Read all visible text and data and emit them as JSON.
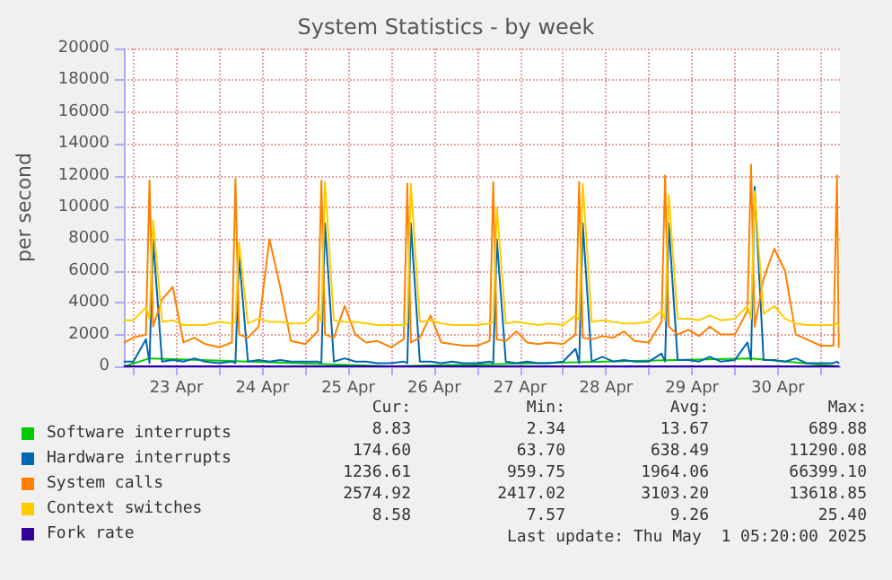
{
  "chart_data": {
    "type": "line",
    "title": "System Statistics - by week",
    "ylabel": "per second",
    "x": [
      "2025-04-22T21:30",
      "2025-04-23T00:00",
      "2025-04-23T03:30",
      "2025-04-23T04:30",
      "2025-04-23T05:30",
      "2025-04-23T08:00",
      "2025-04-23T11:00",
      "2025-04-23T14:00",
      "2025-04-23T17:00",
      "2025-04-23T20:00",
      "2025-04-24T00:00",
      "2025-04-24T03:30",
      "2025-04-24T04:30",
      "2025-04-24T05:30",
      "2025-04-24T08:00",
      "2025-04-24T11:00",
      "2025-04-24T14:00",
      "2025-04-24T17:00",
      "2025-04-24T20:00",
      "2025-04-25T00:00",
      "2025-04-25T03:30",
      "2025-04-25T04:30",
      "2025-04-25T05:30",
      "2025-04-25T08:00",
      "2025-04-25T11:00",
      "2025-04-25T14:00",
      "2025-04-25T17:00",
      "2025-04-25T20:00",
      "2025-04-26T00:00",
      "2025-04-26T03:30",
      "2025-04-26T04:30",
      "2025-04-26T05:30",
      "2025-04-26T08:00",
      "2025-04-26T11:00",
      "2025-04-26T14:00",
      "2025-04-26T17:00",
      "2025-04-26T20:00",
      "2025-04-27T00:00",
      "2025-04-27T03:30",
      "2025-04-27T04:30",
      "2025-04-27T05:30",
      "2025-04-27T08:00",
      "2025-04-27T11:00",
      "2025-04-27T14:00",
      "2025-04-27T17:00",
      "2025-04-27T20:00",
      "2025-04-28T00:00",
      "2025-04-28T03:30",
      "2025-04-28T04:30",
      "2025-04-28T05:30",
      "2025-04-28T08:00",
      "2025-04-28T11:00",
      "2025-04-28T14:00",
      "2025-04-28T17:00",
      "2025-04-28T20:00",
      "2025-04-29T00:00",
      "2025-04-29T03:30",
      "2025-04-29T04:30",
      "2025-04-29T05:30",
      "2025-04-29T08:00",
      "2025-04-29T11:00",
      "2025-04-29T14:00",
      "2025-04-29T17:00",
      "2025-04-29T20:00",
      "2025-04-30T00:00",
      "2025-04-30T03:30",
      "2025-04-30T04:30",
      "2025-04-30T05:30",
      "2025-04-30T08:00",
      "2025-04-30T11:00",
      "2025-04-30T14:00",
      "2025-04-30T17:00",
      "2025-04-30T20:00",
      "2025-05-01T00:00",
      "2025-05-01T03:30",
      "2025-05-01T04:30",
      "2025-05-01T05:00"
    ],
    "series": [
      {
        "name": "Software interrupts",
        "color": "#00cc00",
        "x": [
          "2025-04-22T21:30",
          "2025-04-23T04:30",
          "2025-04-26T00:00",
          "2025-04-30T04:30",
          "2025-05-01T05:00"
        ],
        "values": [
          0,
          500,
          0,
          500,
          0
        ]
      },
      {
        "name": "Hardware interrupts",
        "color": "#0066b3",
        "values": [
          300,
          300,
          1700,
          200,
          8000,
          300,
          400,
          300,
          500,
          300,
          200,
          300,
          200,
          7000,
          300,
          400,
          300,
          400,
          300,
          300,
          300,
          200,
          9000,
          300,
          500,
          300,
          300,
          200,
          200,
          300,
          200,
          9000,
          300,
          300,
          200,
          300,
          200,
          200,
          300,
          200,
          8000,
          300,
          200,
          300,
          200,
          200,
          300,
          1100,
          200,
          9000,
          300,
          600,
          300,
          400,
          300,
          300,
          800,
          300,
          9000,
          400,
          400,
          300,
          600,
          300,
          400,
          1500,
          400,
          11300,
          400,
          400,
          300,
          500,
          200,
          200,
          200,
          300,
          200
        ]
      },
      {
        "name": "System calls",
        "color": "#ff8000",
        "values": [
          1500,
          1800,
          2000,
          11700,
          2500,
          4200,
          5000,
          1500,
          1800,
          1400,
          1200,
          1500,
          11800,
          2000,
          1800,
          2500,
          8000,
          5000,
          1600,
          1400,
          2200,
          11700,
          2000,
          1800,
          3800,
          2000,
          1500,
          1600,
          1200,
          1700,
          11500,
          1500,
          1800,
          3200,
          1500,
          1400,
          1300,
          1300,
          1600,
          11600,
          1700,
          1600,
          2200,
          1500,
          1400,
          1500,
          1400,
          2000,
          11600,
          1800,
          1700,
          1900,
          1800,
          2200,
          1600,
          1500,
          2800,
          12000,
          2500,
          2000,
          2300,
          1900,
          2500,
          2000,
          2000,
          3500,
          12700,
          2500,
          5500,
          7400,
          6000,
          2000,
          1700,
          1300,
          1300,
          12000,
          1200
        ]
      },
      {
        "name": "Context switches",
        "color": "#ffcc00",
        "values": [
          2900,
          2900,
          3700,
          3000,
          9200,
          2800,
          2900,
          2600,
          2600,
          2600,
          2800,
          2700,
          2800,
          7800,
          2700,
          3000,
          2800,
          2800,
          2700,
          2700,
          3500,
          2800,
          11600,
          2900,
          2800,
          2800,
          2700,
          2600,
          2600,
          2600,
          2700,
          11500,
          2800,
          2900,
          2700,
          2600,
          2600,
          2600,
          2700,
          2800,
          10000,
          2700,
          2800,
          2700,
          2600,
          2700,
          2600,
          3200,
          2900,
          11500,
          2800,
          2900,
          2800,
          2700,
          2700,
          2800,
          3500,
          2900,
          10800,
          3000,
          3000,
          2900,
          3200,
          2900,
          3000,
          3800,
          3000,
          11000,
          3300,
          3800,
          3000,
          2700,
          2600,
          2600,
          2600,
          2700,
          2600
        ]
      },
      {
        "name": "Fork rate",
        "color": "#330099",
        "x": [
          "2025-04-22T21:30",
          "2025-04-25T00:00",
          "2025-04-28T00:00",
          "2025-05-01T05:00"
        ],
        "values": [
          0,
          0,
          0,
          0
        ]
      }
    ],
    "xlim": [
      "2025-04-22T21:20",
      "2025-05-01T05:20"
    ],
    "xticks": [
      {
        "value": "2025-04-23T00:00",
        "label": null
      },
      {
        "value": "2025-04-23T12:00",
        "label": "23 Apr"
      },
      {
        "value": "2025-04-24T00:00",
        "label": null
      },
      {
        "value": "2025-04-24T12:00",
        "label": "24 Apr"
      },
      {
        "value": "2025-04-25T00:00",
        "label": null
      },
      {
        "value": "2025-04-25T12:00",
        "label": "25 Apr"
      },
      {
        "value": "2025-04-26T00:00",
        "label": null
      },
      {
        "value": "2025-04-26T12:00",
        "label": "26 Apr"
      },
      {
        "value": "2025-04-27T00:00",
        "label": null
      },
      {
        "value": "2025-04-27T12:00",
        "label": "27 Apr"
      },
      {
        "value": "2025-04-28T00:00",
        "label": null
      },
      {
        "value": "2025-04-28T12:00",
        "label": "28 Apr"
      },
      {
        "value": "2025-04-29T00:00",
        "label": null
      },
      {
        "value": "2025-04-29T12:00",
        "label": "29 Apr"
      },
      {
        "value": "2025-04-30T00:00",
        "label": null
      },
      {
        "value": "2025-04-30T12:00",
        "label": "30 Apr"
      },
      {
        "value": "2025-05-01T00:00",
        "label": null
      }
    ],
    "ylim": [
      0,
      20000
    ],
    "yticks": [
      0,
      2000,
      4000,
      6000,
      8000,
      10000,
      12000,
      14000,
      16000,
      18000,
      20000
    ],
    "grid": true,
    "legend": "bottom",
    "marker": "none",
    "line_style": "solid",
    "annotations": [
      "Cur:",
      "Min:",
      "Avg:",
      "Max:",
      "8.83",
      "2.34",
      "13.67",
      "689.88",
      "174.60",
      "63.70",
      "638.49",
      "11290.08",
      "1236.61",
      "959.75",
      "1964.06",
      "66399.10",
      "2574.92",
      "2417.02",
      "3103.20",
      "13618.85",
      "8.58",
      "7.57",
      "9.26",
      "25.40",
      "Last update: Thu May  1 05:20:00 2025"
    ]
  }
}
